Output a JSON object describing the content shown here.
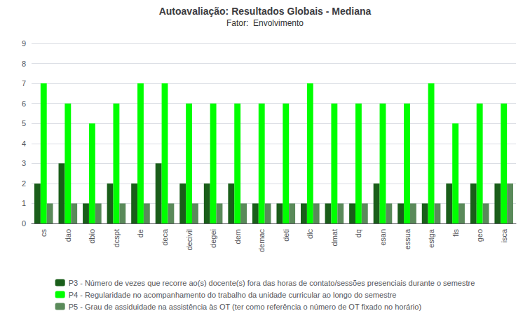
{
  "chart_data": {
    "type": "bar",
    "title": "Autoavaliação: Resultados Globais - Mediana",
    "subtitle": "Fator:  Envolvimento",
    "categories": [
      "cs",
      "dao",
      "dbio",
      "dcspt",
      "de",
      "deca",
      "decivil",
      "degei",
      "dem",
      "demac",
      "deti",
      "dlc",
      "dmat",
      "dq",
      "esan",
      "essua",
      "estga",
      "fis",
      "geo",
      "isca"
    ],
    "series": [
      {
        "name": "P3 - Número de vezes que recorre ao(s) docente(s) fora das horas de contato/sessões presenciais durante o semestre",
        "color": "#1a5e1a",
        "values": [
          2,
          3,
          1,
          2,
          2,
          3,
          2,
          2,
          2,
          1,
          1,
          1,
          1,
          1,
          2,
          1,
          1,
          2,
          2,
          2
        ]
      },
      {
        "name": "P4 - Regularidade no acompanhamento do trabalho da unidade curricular ao longo do semestre",
        "color": "#00ff00",
        "values": [
          7,
          6,
          5,
          6,
          7,
          7,
          6,
          6,
          6,
          6,
          6,
          7,
          6,
          6,
          6,
          6,
          7,
          5,
          6,
          6
        ]
      },
      {
        "name": "P5 - Grau de assiduidade na assistência às OT (ter como referência o número de OT fixado no horário)",
        "color": "#5a8a5a",
        "values": [
          1,
          1,
          1,
          1,
          1,
          1,
          1,
          1,
          1,
          1,
          1,
          1,
          1,
          1,
          1,
          1,
          1,
          1,
          1,
          2
        ]
      }
    ],
    "ylim": [
      0,
      9
    ],
    "yticks": [
      0,
      1,
      2,
      3,
      4,
      5,
      6,
      7,
      8,
      9
    ],
    "grid": true,
    "legend": "bottom"
  }
}
